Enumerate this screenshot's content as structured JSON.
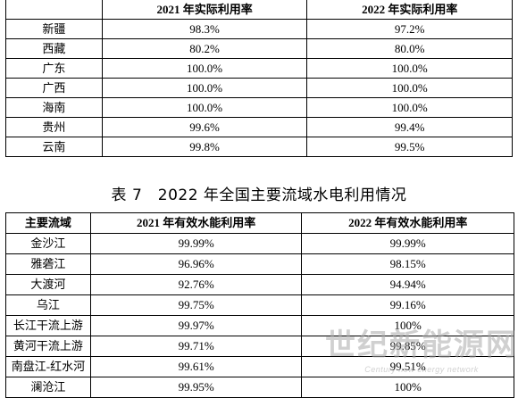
{
  "table1": {
    "headers": [
      "",
      "2021 年实际利用率",
      "2022 年实际利用率"
    ],
    "rows": [
      [
        "新疆",
        "98.3%",
        "97.2%"
      ],
      [
        "西藏",
        "80.2%",
        "80.0%"
      ],
      [
        "广东",
        "100.0%",
        "100.0%"
      ],
      [
        "广西",
        "100.0%",
        "100.0%"
      ],
      [
        "海南",
        "100.0%",
        "100.0%"
      ],
      [
        "贵州",
        "99.6%",
        "99.4%"
      ],
      [
        "云南",
        "99.8%",
        "99.5%"
      ]
    ]
  },
  "caption": "表 7　2022 年全国主要流域水电利用情况",
  "table2": {
    "headers": [
      "主要流域",
      "2021 年有效水能利用率",
      "2022 年有效水能利用率"
    ],
    "rows": [
      [
        "金沙江",
        "99.99%",
        "99.99%"
      ],
      [
        "雅砻江",
        "96.96%",
        "98.15%"
      ],
      [
        "大渡河",
        "92.76%",
        "94.94%"
      ],
      [
        "乌江",
        "99.75%",
        "99.16%"
      ],
      [
        "长江干流上游",
        "99.97%",
        "100%"
      ],
      [
        "黄河干流上游",
        "99.71%",
        "99.85%"
      ],
      [
        "南盘江-红水河",
        "99.61%",
        "99.51%"
      ],
      [
        "澜沧江",
        "99.95%",
        "100%"
      ]
    ]
  },
  "watermark": {
    "title": "世纪新能源网",
    "subtitle": "Century new energy network"
  }
}
